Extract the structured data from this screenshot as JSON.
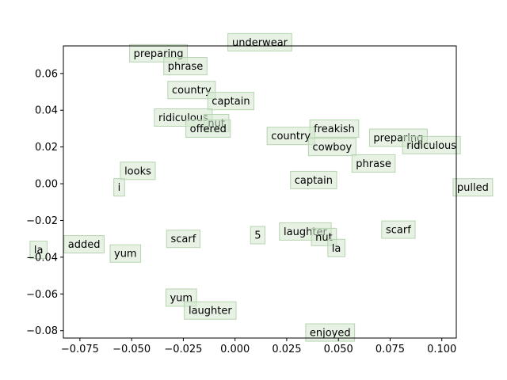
{
  "chart_data": {
    "type": "scatter",
    "title": "",
    "xlabel": "",
    "ylabel": "",
    "xlim": [
      -0.083,
      0.107
    ],
    "ylim": [
      -0.084,
      0.075
    ],
    "x_ticks": [
      -0.075,
      -0.05,
      -0.025,
      0.0,
      0.025,
      0.05,
      0.075,
      0.1
    ],
    "x_tick_labels": [
      "−0.075",
      "−0.050",
      "−0.025",
      "0.000",
      "0.025",
      "0.050",
      "0.075",
      "0.100"
    ],
    "y_ticks": [
      -0.08,
      -0.06,
      -0.04,
      -0.02,
      0.0,
      0.02,
      0.04,
      0.06
    ],
    "y_tick_labels": [
      "−0.08",
      "−0.06",
      "−0.04",
      "−0.02",
      "0.00",
      "0.02",
      "0.04",
      "0.06"
    ],
    "grid": false,
    "points": [
      {
        "label": "underwear",
        "x": 0.012,
        "y": 0.077
      },
      {
        "label": "preparing",
        "x": -0.037,
        "y": 0.071
      },
      {
        "label": "phrase",
        "x": -0.024,
        "y": 0.064
      },
      {
        "label": "country",
        "x": -0.021,
        "y": 0.051
      },
      {
        "label": "captain",
        "x": -0.002,
        "y": 0.045
      },
      {
        "label": "ridiculous",
        "x": -0.025,
        "y": 0.036
      },
      {
        "label": "nut",
        "x": -0.009,
        "y": 0.033
      },
      {
        "label": "offered",
        "x": -0.013,
        "y": 0.03
      },
      {
        "label": "freakish",
        "x": 0.048,
        "y": 0.03
      },
      {
        "label": "country",
        "x": 0.027,
        "y": 0.026
      },
      {
        "label": "preparing",
        "x": 0.079,
        "y": 0.025
      },
      {
        "label": "ridiculous",
        "x": 0.095,
        "y": 0.021
      },
      {
        "label": "cowboy",
        "x": 0.047,
        "y": 0.02
      },
      {
        "label": "phrase",
        "x": 0.067,
        "y": 0.011
      },
      {
        "label": "looks",
        "x": -0.047,
        "y": 0.007
      },
      {
        "label": "captain",
        "x": 0.038,
        "y": 0.002
      },
      {
        "label": "i",
        "x": -0.056,
        "y": -0.002
      },
      {
        "label": "pulled",
        "x": 0.115,
        "y": -0.002
      },
      {
        "label": "scarf",
        "x": 0.079,
        "y": -0.025
      },
      {
        "label": "laughter",
        "x": 0.034,
        "y": -0.026
      },
      {
        "label": "5",
        "x": 0.011,
        "y": -0.028
      },
      {
        "label": "nut",
        "x": 0.043,
        "y": -0.029
      },
      {
        "label": "scarf",
        "x": -0.025,
        "y": -0.03
      },
      {
        "label": "added",
        "x": -0.073,
        "y": -0.033
      },
      {
        "label": "la",
        "x": -0.095,
        "y": -0.036
      },
      {
        "label": "la",
        "x": 0.049,
        "y": -0.035
      },
      {
        "label": "yum",
        "x": -0.053,
        "y": -0.038
      },
      {
        "label": "yum",
        "x": -0.026,
        "y": -0.062
      },
      {
        "label": "laughter",
        "x": -0.012,
        "y": -0.069
      },
      {
        "label": "enjoyed",
        "x": 0.046,
        "y": -0.081
      }
    ]
  }
}
